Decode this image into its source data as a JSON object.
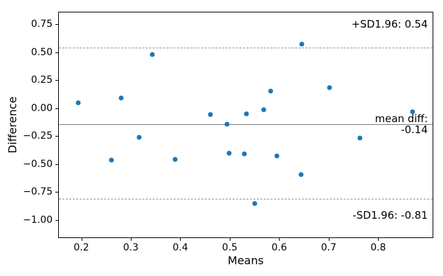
{
  "figure": {
    "background": "#ffffff"
  },
  "chart_data": {
    "type": "scatter",
    "title": "",
    "xlabel": "Means",
    "ylabel": "Difference",
    "xlim": [
      0.1545,
      0.91
    ],
    "ylim": [
      -1.156,
      0.858
    ],
    "grid": false,
    "marker_color": "#1f77b4",
    "marker_size_px": 7,
    "x_ticks": [
      0.2,
      0.3,
      0.4,
      0.5,
      0.6,
      0.7,
      0.8
    ],
    "x_tick_labels": [
      "0.2",
      "0.3",
      "0.4",
      "0.5",
      "0.6",
      "0.7",
      "0.8"
    ],
    "y_ticks": [
      0.75,
      0.5,
      0.25,
      0.0,
      -0.25,
      -0.5,
      -0.75,
      -1.0
    ],
    "y_tick_labels": [
      "0.75",
      "0.50",
      "0.25",
      "0.00",
      "−0.25",
      "−0.50",
      "−0.75",
      "−1.00"
    ],
    "points": [
      [
        0.193,
        0.047
      ],
      [
        0.28,
        0.095
      ],
      [
        0.344,
        0.483
      ],
      [
        0.461,
        -0.057
      ],
      [
        0.495,
        -0.142
      ],
      [
        0.533,
        -0.05
      ],
      [
        0.568,
        -0.015
      ],
      [
        0.583,
        0.152
      ],
      [
        0.645,
        0.575
      ],
      [
        0.701,
        0.182
      ],
      [
        0.87,
        -0.031
      ],
      [
        0.317,
        -0.26
      ],
      [
        0.261,
        -0.464
      ],
      [
        0.389,
        -0.456
      ],
      [
        0.499,
        -0.403
      ],
      [
        0.529,
        -0.409
      ],
      [
        0.55,
        -0.855
      ],
      [
        0.595,
        -0.425
      ],
      [
        0.644,
        -0.596
      ],
      [
        0.763,
        -0.266
      ]
    ],
    "lines": [
      {
        "name": "upper-loa",
        "value": 0.54,
        "style": "dashed",
        "color": "#909090"
      },
      {
        "name": "mean-diff",
        "value": -0.14,
        "style": "solid",
        "color": "#7a7a7a"
      },
      {
        "name": "lower-loa",
        "value": -0.81,
        "style": "dashed",
        "color": "#909090"
      }
    ]
  },
  "annotations": {
    "upper": "+SD1.96: 0.54",
    "mean_line1": "mean diff:",
    "mean_line2": "-0.14",
    "lower": "-SD1.96: -0.81"
  }
}
